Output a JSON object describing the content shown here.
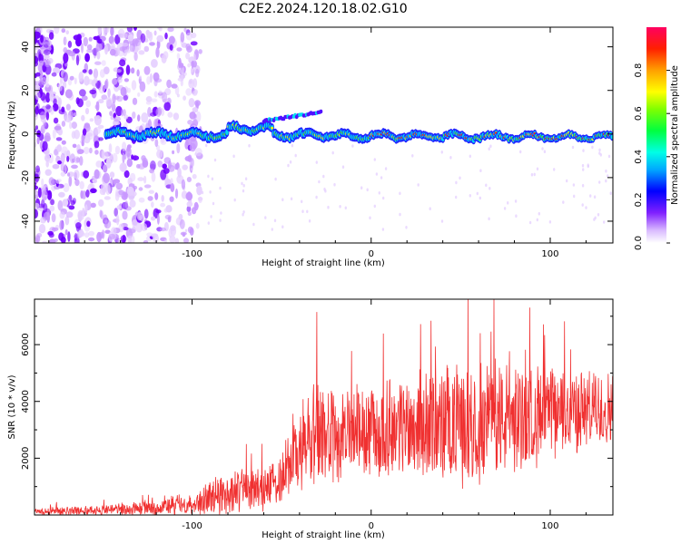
{
  "title": "C2E2.2024.120.18.02.G10",
  "colors": {
    "snr_line": "#f03030",
    "colormap": [
      "#ffffff",
      "#e6c8ff",
      "#b070ff",
      "#7000ff",
      "#0000ff",
      "#00a0ff",
      "#00ffe0",
      "#00ff60",
      "#60ff00",
      "#ffff00",
      "#ffa000",
      "#ff3000",
      "#ff0050"
    ]
  },
  "chart_data": [
    {
      "name": "spectrogram",
      "type": "heatmap",
      "xlabel": "Height of straight line (km)",
      "ylabel": "Frequency (Hz)",
      "xlim": [
        -188,
        135
      ],
      "ylim": [
        -50,
        49
      ],
      "x_ticks": [
        -100,
        0,
        100
      ],
      "y_ticks": [
        -40,
        -20,
        0,
        20,
        40
      ],
      "colorbar": {
        "label": "Normalized spectral amplitude",
        "range": [
          0,
          1
        ],
        "ticks": [
          "0.0",
          "0.2",
          "0.4",
          "0.6",
          "0.8"
        ]
      },
      "features": {
        "noise_region_x": [
          -188,
          -105
        ],
        "main_line_freq_hz": 0,
        "main_line_x": [
          -148,
          135
        ],
        "secondary_branch": {
          "x": [
            -60,
            -28
          ],
          "freq": [
            6,
            10
          ]
        }
      }
    },
    {
      "name": "snr",
      "type": "line",
      "xlabel": "Height of straight line (km)",
      "ylabel": "SNR (10 * v/v)",
      "xlim": [
        -188,
        135
      ],
      "ylim": [
        0,
        7600
      ],
      "x_ticks": [
        -100,
        0,
        100
      ],
      "y_ticks": [
        2000,
        4000,
        6000
      ],
      "envelope": {
        "x": [
          -188,
          -150,
          -120,
          -100,
          -85,
          -70,
          -55,
          -45,
          -35,
          -30,
          -20,
          -10,
          0,
          20,
          40,
          60,
          80,
          100,
          120,
          135
        ],
        "mean": [
          120,
          180,
          260,
          400,
          700,
          900,
          1000,
          2000,
          2500,
          3000,
          2600,
          3000,
          2800,
          3200,
          3100,
          3300,
          3400,
          3600,
          3700,
          3700
        ],
        "amp": [
          150,
          200,
          320,
          500,
          800,
          900,
          900,
          1500,
          2000,
          2300,
          1800,
          1700,
          1800,
          2000,
          2300,
          2400,
          2200,
          1800,
          1600,
          1500
        ]
      }
    }
  ]
}
